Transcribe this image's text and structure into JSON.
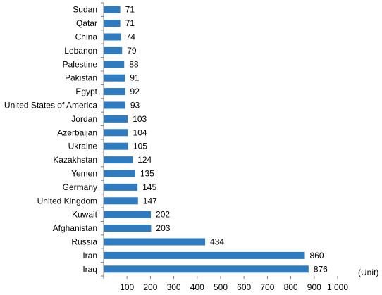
{
  "chart_data": {
    "type": "bar",
    "orientation": "horizontal",
    "categories": [
      "Sudan",
      "Qatar",
      "China",
      "Lebanon",
      "Palestine",
      "Pakistan",
      "Egypt",
      "United States of America",
      "Jordan",
      "Azerbaijan",
      "Ukraine",
      "Kazakhstan",
      "Yemen",
      "Germany",
      "United Kingdom",
      "Kuwait",
      "Afghanistan",
      "Russia",
      "Iran",
      "Iraq"
    ],
    "values": [
      71,
      71,
      74,
      79,
      88,
      91,
      92,
      93,
      103,
      104,
      105,
      124,
      135,
      145,
      147,
      202,
      203,
      434,
      860,
      876
    ],
    "data_labels": [
      "71",
      "71",
      "74",
      "79",
      "88",
      "91",
      "92",
      "93",
      "103",
      "104",
      "105",
      "124",
      "135",
      "145",
      "147",
      "202",
      "203",
      "434",
      "860",
      "876"
    ],
    "x_ticks": [
      "100",
      "200",
      "300",
      "400",
      "500",
      "600",
      "700",
      "800",
      "900",
      "1 000"
    ],
    "xlim": [
      0,
      1000
    ],
    "unit_label": "(Unit)",
    "title": "",
    "xlabel": "",
    "ylabel": "",
    "grid": false,
    "legend": "none",
    "colors": {
      "bar": "#2e7bbf",
      "axis": "#7f7f7f",
      "text": "#000000"
    }
  }
}
